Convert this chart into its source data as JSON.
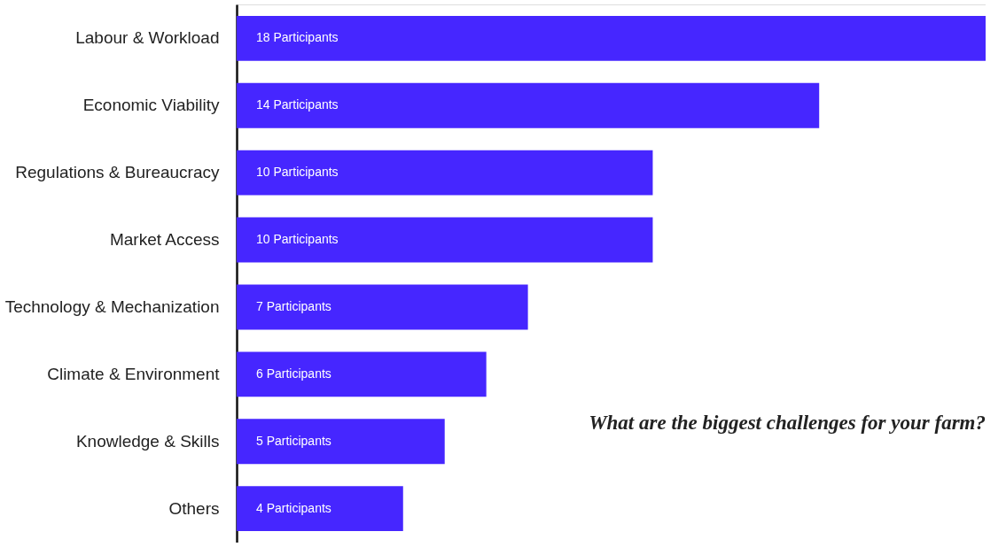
{
  "chart_data": {
    "type": "bar",
    "orientation": "horizontal",
    "title": "What are the biggest challenges for your farm?",
    "categories": [
      "Labour & Workload",
      "Economic Viability",
      "Regulations & Bureaucracy",
      "Market Access",
      "Technology & Mechanization",
      "Climate & Environment",
      "Knowledge & Skills",
      "Others"
    ],
    "values": [
      18,
      14,
      10,
      10,
      7,
      6,
      5,
      4
    ],
    "value_labels": [
      "18 Participants",
      "14 Participants",
      "10 Participants",
      "10 Participants",
      "7 Participants",
      "6 Participants",
      "5 Participants",
      "4 Participants"
    ],
    "color": "#4626ff",
    "grid": false
  }
}
